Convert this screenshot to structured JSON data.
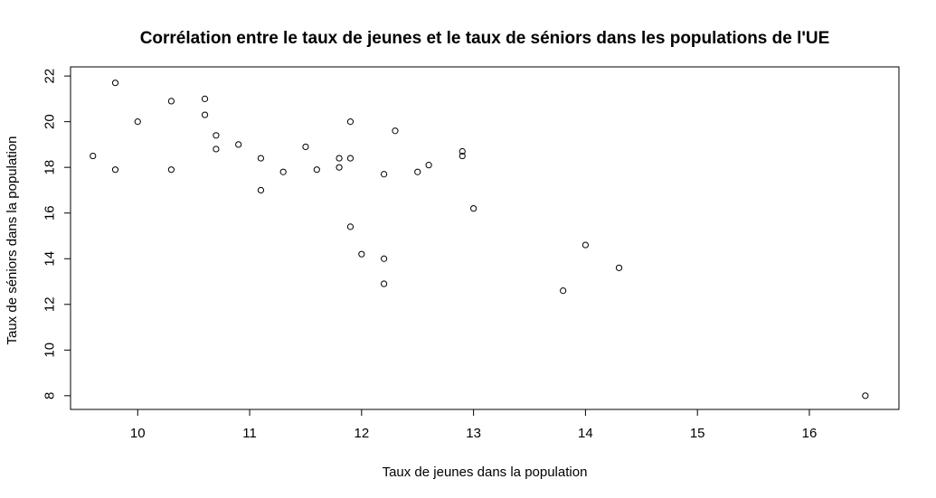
{
  "chart_data": {
    "type": "scatter",
    "title": "Corrélation entre le taux de jeunes et le taux de séniors dans les populations de l'UE",
    "xlabel": "Taux de jeunes dans la population",
    "ylabel": "Taux de séniors dans la population",
    "xlim": [
      9.4,
      16.8
    ],
    "ylim": [
      7.4,
      22.4
    ],
    "xticks": [
      10,
      11,
      12,
      13,
      14,
      15,
      16
    ],
    "yticks": [
      8,
      10,
      12,
      14,
      16,
      18,
      20,
      22
    ],
    "grid": false,
    "legend": "none",
    "marker": "open-circle",
    "points": [
      {
        "x": 9.6,
        "y": 18.5
      },
      {
        "x": 9.8,
        "y": 21.7
      },
      {
        "x": 9.8,
        "y": 17.9
      },
      {
        "x": 10.0,
        "y": 20.0
      },
      {
        "x": 10.3,
        "y": 20.9
      },
      {
        "x": 10.3,
        "y": 17.9
      },
      {
        "x": 10.6,
        "y": 21.0
      },
      {
        "x": 10.6,
        "y": 20.3
      },
      {
        "x": 10.7,
        "y": 19.4
      },
      {
        "x": 10.7,
        "y": 18.8
      },
      {
        "x": 10.9,
        "y": 19.0
      },
      {
        "x": 11.1,
        "y": 18.4
      },
      {
        "x": 11.1,
        "y": 17.0
      },
      {
        "x": 11.3,
        "y": 17.8
      },
      {
        "x": 11.5,
        "y": 18.9
      },
      {
        "x": 11.6,
        "y": 17.9
      },
      {
        "x": 11.8,
        "y": 18.4
      },
      {
        "x": 11.8,
        "y": 18.0
      },
      {
        "x": 11.9,
        "y": 20.0
      },
      {
        "x": 11.9,
        "y": 18.4
      },
      {
        "x": 11.9,
        "y": 15.4
      },
      {
        "x": 12.0,
        "y": 14.2
      },
      {
        "x": 12.2,
        "y": 17.7
      },
      {
        "x": 12.2,
        "y": 14.0
      },
      {
        "x": 12.2,
        "y": 12.9
      },
      {
        "x": 12.3,
        "y": 19.6
      },
      {
        "x": 12.5,
        "y": 17.8
      },
      {
        "x": 12.6,
        "y": 18.1
      },
      {
        "x": 12.9,
        "y": 18.7
      },
      {
        "x": 12.9,
        "y": 18.5
      },
      {
        "x": 13.0,
        "y": 16.2
      },
      {
        "x": 13.8,
        "y": 12.6
      },
      {
        "x": 14.0,
        "y": 14.6
      },
      {
        "x": 14.3,
        "y": 13.6
      },
      {
        "x": 16.5,
        "y": 8.0
      }
    ]
  }
}
